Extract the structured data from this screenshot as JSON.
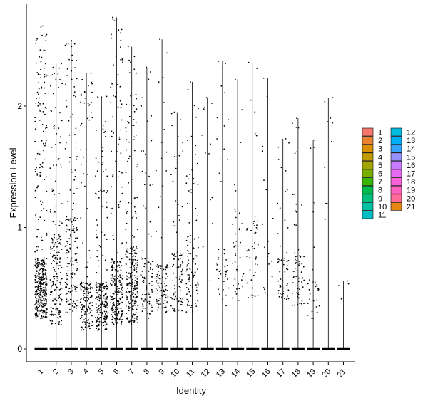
{
  "chart_data": {
    "type": "scatter",
    "subtype": "violin-jitter",
    "xlabel": "Identity",
    "ylabel": "Expression Level",
    "categories": [
      "1",
      "2",
      "3",
      "4",
      "5",
      "6",
      "7",
      "8",
      "9",
      "10",
      "11",
      "12",
      "13",
      "14",
      "15",
      "16",
      "17",
      "18",
      "19",
      "20",
      "21"
    ],
    "yticks": [
      0,
      1,
      2
    ],
    "ytick_labels": [
      "0",
      "1",
      "2"
    ],
    "ylim": [
      -0.1,
      2.84
    ],
    "legend_position": "right",
    "legend_columns": [
      [
        "1",
        "2",
        "3",
        "4",
        "5",
        "6",
        "7",
        "8",
        "9",
        "10",
        "11"
      ],
      [
        "12",
        "13",
        "14",
        "15",
        "16",
        "17",
        "18",
        "19",
        "20",
        "21"
      ]
    ],
    "colors": [
      "#F8766D",
      "#EA8331",
      "#D89000",
      "#C09B00",
      "#A3A500",
      "#7CAE00",
      "#39B600",
      "#00BB4E",
      "#00BF7D",
      "#00C1A3",
      "#00BFC4",
      "#00BAE0",
      "#00B0F6",
      "#35A2FF",
      "#9590FF",
      "#C77CFF",
      "#E76BF3",
      "#FA62DB",
      "#FF62BC",
      "#FF6A98",
      "#E68613"
    ],
    "series": [
      {
        "name": "1",
        "max": 2.66,
        "n": 420,
        "lo": 0.25,
        "hi": 0.75
      },
      {
        "name": "2",
        "max": 2.35,
        "n": 210,
        "lo": 0.2,
        "hi": 0.95
      },
      {
        "name": "3",
        "max": 2.54,
        "n": 180,
        "lo": 0.3,
        "hi": 1.1
      },
      {
        "name": "4",
        "max": 2.27,
        "n": 170,
        "lo": 0.15,
        "hi": 0.55
      },
      {
        "name": "5",
        "max": 2.08,
        "n": 230,
        "lo": 0.15,
        "hi": 0.55
      },
      {
        "name": "6",
        "max": 2.73,
        "n": 260,
        "lo": 0.2,
        "hi": 0.75
      },
      {
        "name": "7",
        "max": 2.49,
        "n": 260,
        "lo": 0.2,
        "hi": 0.85
      },
      {
        "name": "8",
        "max": 2.32,
        "n": 90,
        "lo": 0.25,
        "hi": 0.75
      },
      {
        "name": "9",
        "max": 2.55,
        "n": 100,
        "lo": 0.3,
        "hi": 0.7
      },
      {
        "name": "10",
        "max": 1.95,
        "n": 90,
        "lo": 0.3,
        "hi": 0.8
      },
      {
        "name": "11",
        "max": 2.2,
        "n": 100,
        "lo": 0.3,
        "hi": 0.95
      },
      {
        "name": "12",
        "max": 2.07,
        "n": 14,
        "lo": 0.5,
        "hi": 2.1
      },
      {
        "name": "13",
        "max": 2.37,
        "n": 45,
        "lo": 0.3,
        "hi": 0.9
      },
      {
        "name": "14",
        "max": 2.22,
        "n": 40,
        "lo": 0.4,
        "hi": 1.4
      },
      {
        "name": "15",
        "max": 2.36,
        "n": 45,
        "lo": 0.4,
        "hi": 1.1
      },
      {
        "name": "16",
        "max": 2.23,
        "n": 18,
        "lo": 0.3,
        "hi": 1.7
      },
      {
        "name": "17",
        "max": 1.73,
        "n": 55,
        "lo": 0.4,
        "hi": 0.8
      },
      {
        "name": "18",
        "max": 1.9,
        "n": 65,
        "lo": 0.35,
        "hi": 0.8
      },
      {
        "name": "19",
        "max": 1.72,
        "n": 30,
        "lo": 0.25,
        "hi": 0.6
      },
      {
        "name": "20",
        "max": 2.07,
        "n": 10,
        "lo": 0.8,
        "hi": 2.0
      },
      {
        "name": "21",
        "max": 0.56,
        "n": 4,
        "lo": 0.3,
        "hi": 0.56
      }
    ]
  }
}
